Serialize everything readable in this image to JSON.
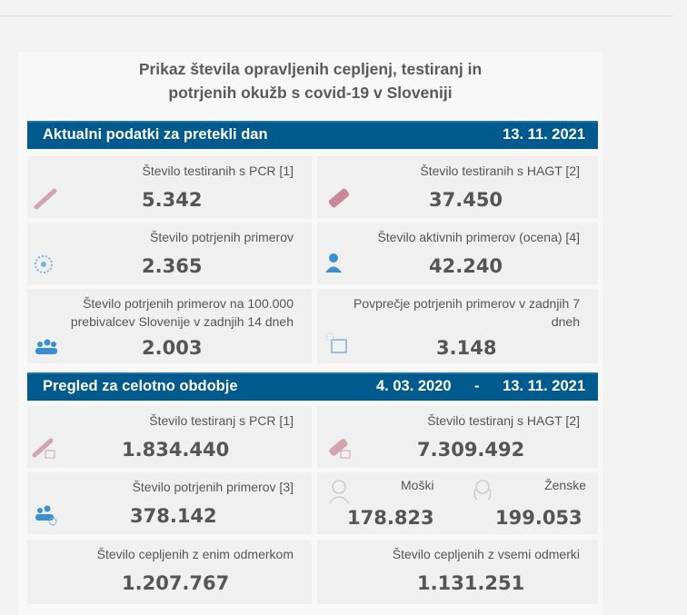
{
  "title_line1": "Prikaz števila opravljenih cepljenj, testiranj in",
  "title_line2": "potrjenih okužb s covid-19 v Sloveniji",
  "current": {
    "heading": "Aktualni podatki za pretekli dan",
    "date": "13. 11. 2021",
    "pcr": {
      "label": "Število testiranih s PCR [1]",
      "value": "5.342"
    },
    "hagt": {
      "label": "Število testiranih s HAGT [2]",
      "value": "37.450"
    },
    "confirmed": {
      "label": "Število potrjenih primerov",
      "value": "2.365"
    },
    "active": {
      "label": "Število aktivnih primerov (ocena) [4]",
      "value": "42.240"
    },
    "per100k": {
      "label1": "Število potrjenih primerov na 100.000",
      "label2": "prebivalcev Slovenije v zadnjih 14 dneh",
      "value": "2.003"
    },
    "avg7": {
      "label1": "Povprečje potrjenih primerov v zadnjih 7",
      "label2": "dneh",
      "value": "3.148"
    }
  },
  "overall": {
    "heading": "Pregled za celotno obdobje",
    "date_from": "4. 03. 2020",
    "dash": "-",
    "date_to": "13. 11. 2021",
    "pcr": {
      "label": "Število testiranj s PCR [1]",
      "value": "1.834.440"
    },
    "hagt": {
      "label": "Število testiranj s HAGT [2]",
      "value": "7.309.492"
    },
    "confirmed": {
      "label": "Število potrjenih primerov [3]",
      "value": "378.142"
    },
    "male": {
      "label": "Moški",
      "value": "178.823"
    },
    "female": {
      "label": "Ženske",
      "value": "199.053"
    },
    "vacc1": {
      "label": "Število cepljenih z enim odmerkom",
      "value": "1.207.767"
    },
    "vaccall": {
      "label": "Število cepljenih z vsemi odmerki",
      "value": "1.131.251"
    }
  },
  "colors": {
    "bar": "#005a8e",
    "card": "#f0f0f0",
    "tube": "#c98a9a",
    "virus": "#5b9bd5"
  }
}
